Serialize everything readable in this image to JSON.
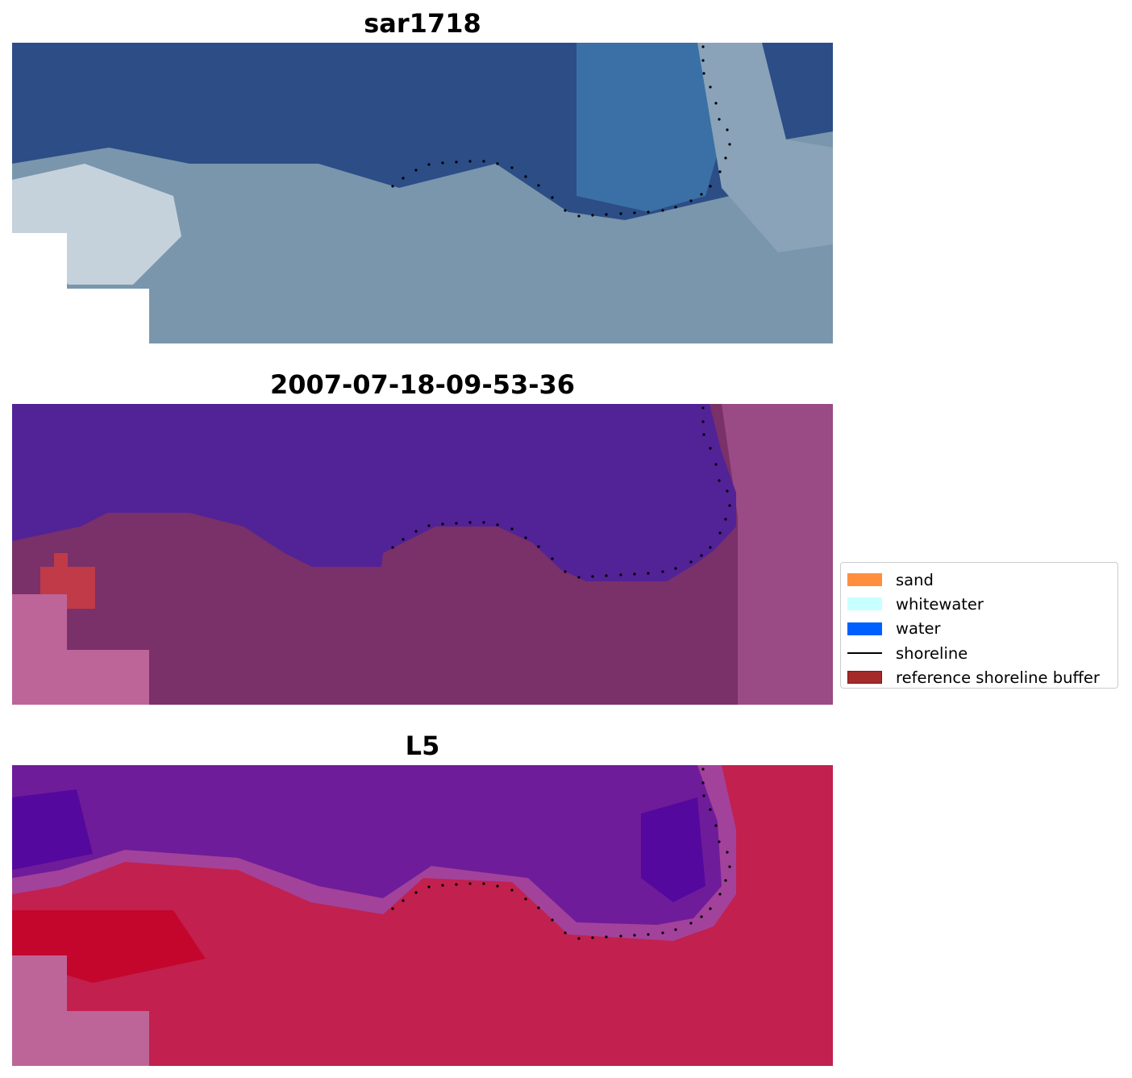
{
  "panels": [
    {
      "id": "rgb",
      "title": "sar1718",
      "colors": {
        "dark": "#2c4d86",
        "mid": "#3a70a6",
        "light": "#8aa3b8",
        "pale": "#c5d2dc",
        "land": "#7a96ac",
        "nodata": "#ffffff"
      }
    },
    {
      "id": "classification",
      "title": "2007-07-18-09-53-36",
      "colors": {
        "water": "#522297",
        "land": "#7a3068",
        "land_light": "#9a4a84",
        "buffer": "#c03a48",
        "nodata": "#bd6598"
      }
    },
    {
      "id": "index",
      "title": "L5",
      "colors": {
        "water": "#6f1c9a",
        "water_deep": "#55089e",
        "edge": "#a3429a",
        "land": "#c2204e",
        "land_deep": "#c4062c",
        "nodata": "#bd6598"
      }
    }
  ],
  "legend": {
    "items": [
      {
        "label": "sand",
        "color": "#ff8f3f",
        "kind": "patch"
      },
      {
        "label": "whitewater",
        "color": "#c8ffff",
        "kind": "patch"
      },
      {
        "label": "water",
        "color": "#0060ff",
        "kind": "patch"
      },
      {
        "label": "shoreline",
        "color": "#000000",
        "kind": "line"
      },
      {
        "label": "reference shoreline buffer",
        "color": "#a52a2a",
        "kind": "patch"
      }
    ]
  }
}
